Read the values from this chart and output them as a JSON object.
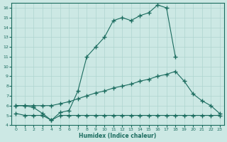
{
  "xlabel": "Humidex (Indice chaleur)",
  "bg_color": "#cce8e4",
  "line_color": "#1a6b5e",
  "grid_color": "#aed4cf",
  "xlim": [
    -0.5,
    23.5
  ],
  "ylim": [
    4,
    16.5
  ],
  "yticks": [
    4,
    5,
    6,
    7,
    8,
    9,
    10,
    11,
    12,
    13,
    14,
    15,
    16
  ],
  "xticks": [
    0,
    1,
    2,
    3,
    4,
    5,
    6,
    7,
    8,
    9,
    10,
    11,
    12,
    13,
    14,
    15,
    16,
    17,
    18,
    19,
    20,
    21,
    22,
    23
  ],
  "series1_x": [
    0,
    1,
    2,
    3,
    4,
    5,
    6,
    7,
    8,
    9,
    10,
    11,
    12,
    13,
    14,
    15,
    16,
    17,
    18
  ],
  "series1_y": [
    6.0,
    6.0,
    5.8,
    5.2,
    4.5,
    5.3,
    5.5,
    7.5,
    11.0,
    12.0,
    13.0,
    14.7,
    15.0,
    14.7,
    15.2,
    15.5,
    16.3,
    16.0,
    11.0
  ],
  "series2_x": [
    0,
    1,
    2,
    3,
    4,
    5,
    6,
    7,
    8,
    9,
    10,
    11,
    12,
    13,
    14,
    15,
    16,
    17,
    18,
    19,
    20,
    21,
    22,
    23
  ],
  "series2_y": [
    6.0,
    6.0,
    6.0,
    6.0,
    6.0,
    6.2,
    6.4,
    6.7,
    7.0,
    7.3,
    7.5,
    7.8,
    8.0,
    8.2,
    8.5,
    8.7,
    9.0,
    9.2,
    9.5,
    8.5,
    7.2,
    6.5,
    6.0,
    5.2
  ],
  "series3_x": [
    0,
    1,
    2,
    3,
    4,
    5,
    6,
    7,
    8,
    9,
    10,
    11,
    12,
    13,
    14,
    15,
    16,
    17,
    18,
    19,
    20,
    21,
    22,
    23
  ],
  "series3_y": [
    5.2,
    5.0,
    5.0,
    5.0,
    4.5,
    5.0,
    5.0,
    5.0,
    5.0,
    5.0,
    5.0,
    5.0,
    5.0,
    5.0,
    5.0,
    5.0,
    5.0,
    5.0,
    5.0,
    5.0,
    5.0,
    5.0,
    5.0,
    5.0
  ]
}
